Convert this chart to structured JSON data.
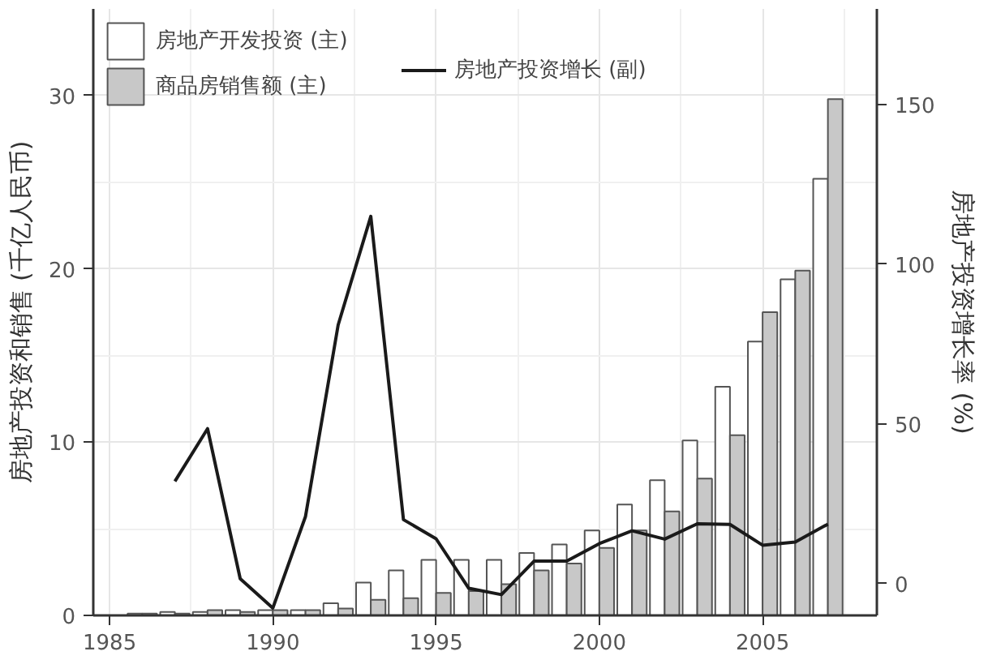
{
  "chart_data": {
    "type": "bar",
    "ylabel": "房地产投资和销售 (千亿人民币)",
    "y2label": "房地产投资增长率 (%)",
    "x": [
      1986,
      1987,
      1988,
      1989,
      1990,
      1991,
      1992,
      1993,
      1994,
      1995,
      1996,
      1997,
      1998,
      1999,
      2000,
      2001,
      2002,
      2003,
      2004,
      2005,
      2006,
      2007
    ],
    "series": [
      {
        "name": "房地产开发投资 (主)",
        "color": "#ffffff",
        "values": [
          0.1,
          0.2,
          0.2,
          0.3,
          0.3,
          0.3,
          0.7,
          1.9,
          2.6,
          3.2,
          3.2,
          3.2,
          3.6,
          4.1,
          4.9,
          6.4,
          7.8,
          10.1,
          13.2,
          15.8,
          19.4,
          25.2
        ]
      },
      {
        "name": "商品房销售额 (主)",
        "color": "#c8c8c8",
        "values": [
          0.1,
          0.1,
          0.3,
          0.2,
          0.3,
          0.3,
          0.4,
          0.9,
          1.0,
          1.3,
          1.4,
          1.8,
          2.6,
          3.0,
          3.9,
          4.9,
          6.0,
          7.9,
          10.4,
          17.5,
          19.9,
          29.8
        ]
      },
      {
        "name": "房地产投资增长 (副)",
        "type": "line",
        "axis": "y2",
        "color": "#1a1a1a",
        "x": [
          1987,
          1988,
          1989,
          1990,
          1991,
          1992,
          1993,
          1994,
          1995,
          1996,
          1997,
          1998,
          1999,
          2000,
          2001,
          2002,
          2003,
          2004,
          2005,
          2006,
          2007
        ],
        "values": [
          32,
          48.5,
          1.5,
          -7.7,
          21,
          81,
          115,
          20,
          14,
          -1.5,
          -3.5,
          7,
          7,
          12.5,
          16.5,
          13.9,
          18.7,
          18.5,
          12,
          13,
          18.6
        ]
      }
    ],
    "xlim": [
      1984.5,
      2008.5
    ],
    "xticks": [
      1985,
      1990,
      1995,
      2000,
      2005
    ],
    "ylim": [
      0,
      35
    ],
    "yticks": [
      0,
      10,
      20,
      30
    ],
    "y2lim": [
      -10,
      180
    ],
    "y2ticks": [
      0,
      50,
      100,
      150
    ],
    "grid": true,
    "legend": "top left"
  }
}
